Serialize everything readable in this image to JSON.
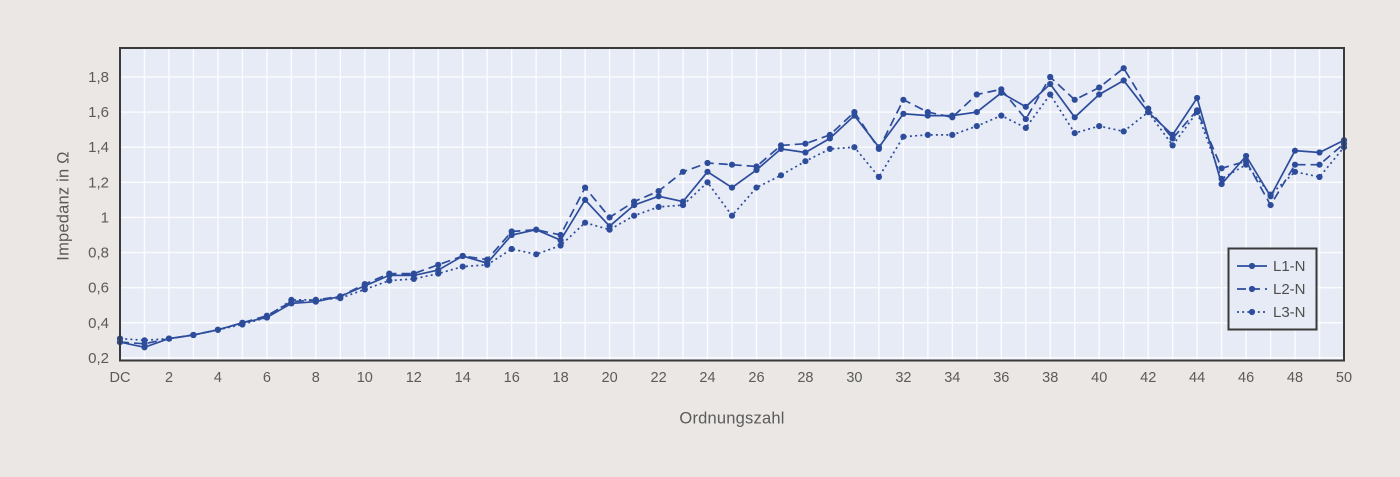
{
  "page": {
    "background_color": "#ebe7e4"
  },
  "chart_data": {
    "type": "line",
    "title": "",
    "xlabel": "Ordnungszahl",
    "ylabel": "Impedanz in Ω",
    "xlim": [
      0,
      50
    ],
    "ylim": [
      0.185,
      1.965
    ],
    "grid": true,
    "legend_position": "lower-right-inside",
    "xtick_positions": [
      0,
      2,
      4,
      6,
      8,
      10,
      12,
      14,
      16,
      18,
      20,
      22,
      24,
      26,
      28,
      30,
      32,
      34,
      36,
      38,
      40,
      42,
      44,
      46,
      48,
      50
    ],
    "xtick_labels": [
      "DC",
      "2",
      "4",
      "6",
      "8",
      "10",
      "12",
      "14",
      "16",
      "18",
      "20",
      "22",
      "24",
      "26",
      "28",
      "30",
      "32",
      "34",
      "36",
      "38",
      "40",
      "42",
      "44",
      "46",
      "48",
      "50"
    ],
    "ytick_values": [
      0.2,
      0.4,
      0.6,
      0.8,
      1.0,
      1.2,
      1.4,
      1.6,
      1.8
    ],
    "ytick_labels": [
      "0,2",
      "0,4",
      "0,6",
      "0,8",
      "1",
      "1,2",
      "1,4",
      "1,6",
      "1,8"
    ],
    "x": [
      0,
      1,
      2,
      3,
      4,
      5,
      6,
      7,
      8,
      9,
      10,
      11,
      12,
      13,
      14,
      15,
      16,
      17,
      18,
      19,
      20,
      21,
      22,
      23,
      24,
      25,
      26,
      27,
      28,
      29,
      30,
      31,
      32,
      33,
      34,
      35,
      36,
      37,
      38,
      39,
      40,
      41,
      42,
      43,
      44,
      45,
      46,
      47,
      48,
      49,
      50
    ],
    "series": [
      {
        "name": "L1-N",
        "style": "solid",
        "values": [
          0.29,
          0.26,
          0.31,
          0.33,
          0.36,
          0.4,
          0.43,
          0.51,
          0.52,
          0.55,
          0.61,
          0.67,
          0.67,
          0.7,
          0.78,
          0.74,
          0.9,
          0.93,
          0.87,
          1.1,
          0.95,
          1.07,
          1.12,
          1.09,
          1.26,
          1.17,
          1.27,
          1.39,
          1.37,
          1.45,
          1.58,
          1.4,
          1.59,
          1.58,
          1.58,
          1.6,
          1.71,
          1.63,
          1.76,
          1.57,
          1.7,
          1.78,
          1.6,
          1.47,
          1.68,
          1.19,
          1.35,
          1.12,
          1.38,
          1.37,
          1.44
        ]
      },
      {
        "name": "L2-N",
        "style": "dashed",
        "values": [
          0.29,
          0.28,
          0.31,
          0.33,
          0.36,
          0.4,
          0.44,
          0.52,
          0.53,
          0.55,
          0.62,
          0.68,
          0.68,
          0.73,
          0.78,
          0.76,
          0.92,
          0.93,
          0.9,
          1.17,
          1.0,
          1.09,
          1.15,
          1.26,
          1.31,
          1.3,
          1.29,
          1.41,
          1.42,
          1.47,
          1.6,
          1.39,
          1.67,
          1.6,
          1.57,
          1.7,
          1.73,
          1.56,
          1.8,
          1.67,
          1.74,
          1.85,
          1.62,
          1.45,
          1.61,
          1.28,
          1.32,
          1.07,
          1.3,
          1.3,
          1.42
        ]
      },
      {
        "name": "L3-N",
        "style": "dotted",
        "values": [
          0.31,
          0.3,
          0.31,
          0.33,
          0.36,
          0.39,
          0.43,
          0.53,
          0.53,
          0.54,
          0.59,
          0.64,
          0.65,
          0.68,
          0.72,
          0.73,
          0.82,
          0.79,
          0.84,
          0.97,
          0.93,
          1.01,
          1.06,
          1.07,
          1.2,
          1.01,
          1.17,
          1.24,
          1.32,
          1.39,
          1.4,
          1.23,
          1.46,
          1.47,
          1.47,
          1.52,
          1.58,
          1.51,
          1.7,
          1.48,
          1.52,
          1.49,
          1.6,
          1.41,
          1.6,
          1.22,
          1.3,
          1.13,
          1.26,
          1.23,
          1.4
        ]
      }
    ],
    "colors": {
      "line": "#2d4d9c",
      "plot_background": "#e7ebf6",
      "page_background": "#ebe7e4",
      "gridline": "#fbfcfe",
      "plot_border": "#3a3a3a",
      "tick_text": "#5b5b5b",
      "legend_text": "#4f4f4f"
    }
  }
}
